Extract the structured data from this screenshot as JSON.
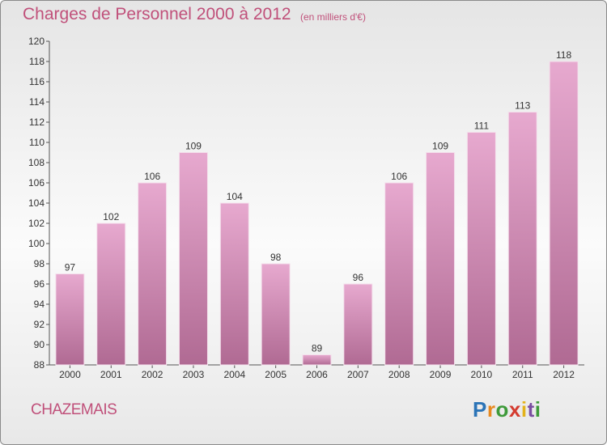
{
  "title": "Charges de Personnel 2000 à 2012",
  "subtitle": "(en milliers d'€)",
  "commune": "CHAZEMAIS",
  "logo": "Proxiti",
  "colors": {
    "bar": "#d890b8",
    "accent": "#c0507a"
  },
  "chart_data": {
    "type": "bar",
    "categories": [
      "2000",
      "2001",
      "2002",
      "2003",
      "2004",
      "2005",
      "2006",
      "2007",
      "2008",
      "2009",
      "2010",
      "2011",
      "2012"
    ],
    "values": [
      97,
      102,
      106,
      109,
      104,
      98,
      89,
      96,
      106,
      109,
      111,
      113,
      118
    ],
    "ylim": [
      88,
      120
    ],
    "yticks": [
      88,
      90,
      92,
      94,
      96,
      98,
      100,
      102,
      104,
      106,
      108,
      110,
      112,
      114,
      116,
      118,
      120
    ],
    "grid": false
  }
}
